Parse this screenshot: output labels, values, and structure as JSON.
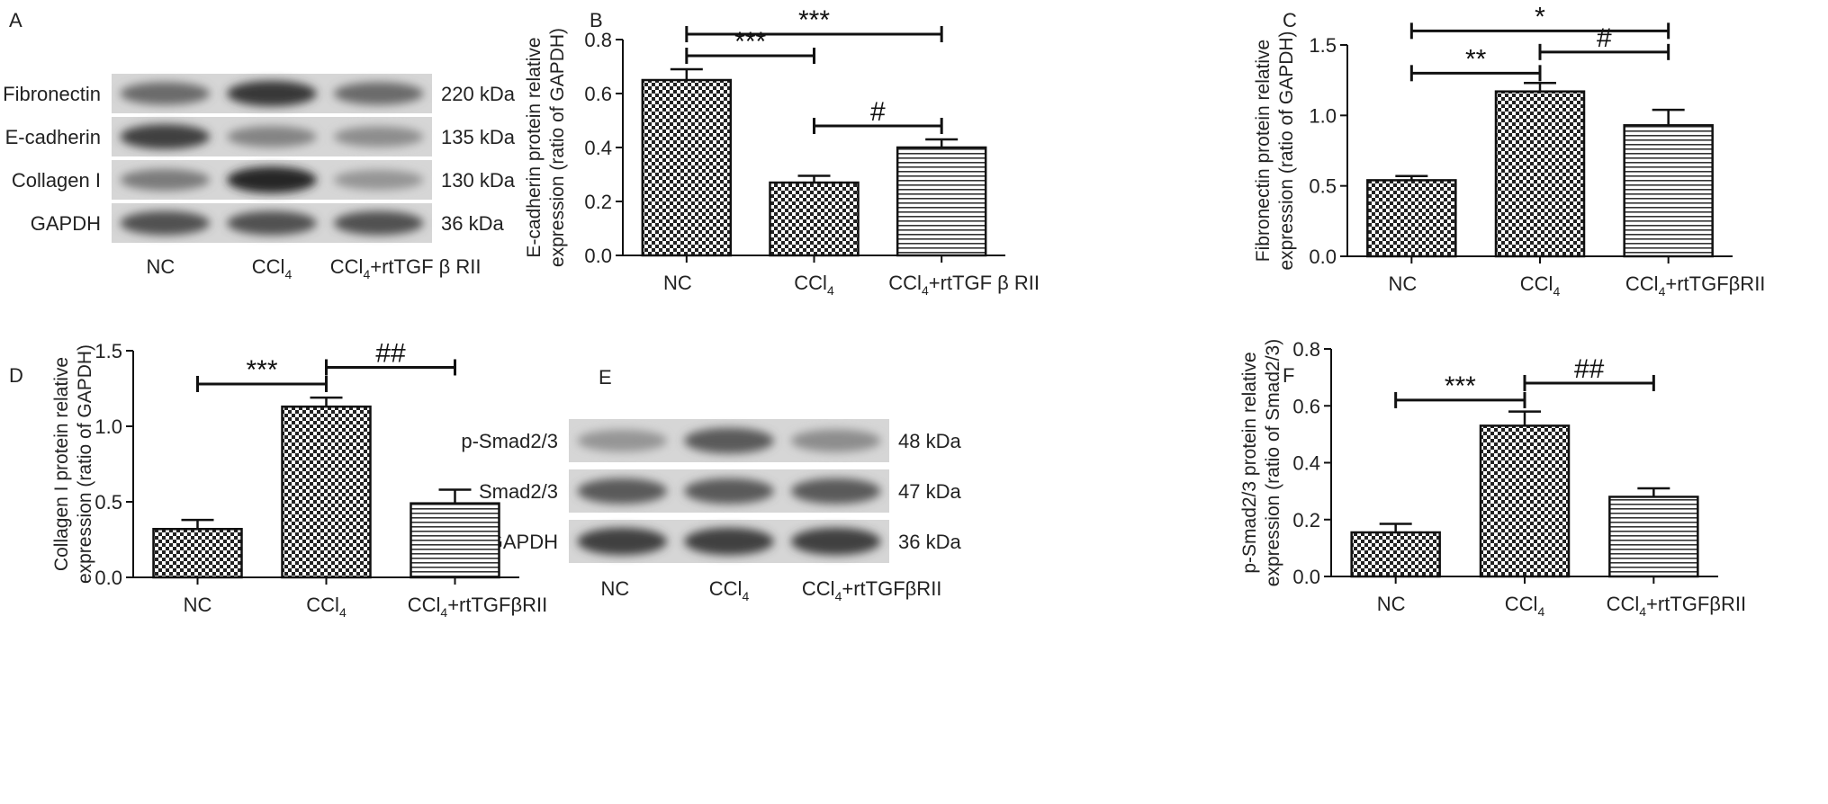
{
  "colors": {
    "ink": "#111111",
    "gel_bg": "#d9d9d9",
    "band": "#3a3a3a",
    "page": "#ffffff"
  },
  "blot_A": {
    "panel_label": "A",
    "rows": [
      {
        "protein": "Fibronectin",
        "size": "220 kDa",
        "intensity": [
          0.55,
          0.85,
          0.55
        ]
      },
      {
        "protein": "E-cadherin",
        "size": "135 kDa",
        "intensity": [
          0.8,
          0.4,
          0.35
        ]
      },
      {
        "protein": "Collagen I",
        "size": "130 kDa",
        "intensity": [
          0.45,
          0.95,
          0.3
        ]
      },
      {
        "protein": "GAPDH",
        "size": "36 kDa",
        "intensity": [
          0.7,
          0.7,
          0.7
        ]
      }
    ],
    "lanes": [
      {
        "main": "NC",
        "sub": "",
        "rest": ""
      },
      {
        "main": "CCl",
        "sub": "4",
        "rest": ""
      },
      {
        "main": "CCl",
        "sub": "4",
        "rest": "+rtTGF β RII"
      }
    ]
  },
  "blot_E": {
    "panel_label": "E",
    "rows": [
      {
        "protein": "p-Smad2/3",
        "size": "48 kDa",
        "intensity": [
          0.3,
          0.65,
          0.35
        ]
      },
      {
        "protein": "Smad2/3",
        "size": "47 kDa",
        "intensity": [
          0.65,
          0.65,
          0.65
        ]
      },
      {
        "protein": "GAPDH",
        "size": "36 kDa",
        "intensity": [
          0.8,
          0.8,
          0.8
        ]
      }
    ],
    "lanes": [
      {
        "main": "NC",
        "sub": "",
        "rest": ""
      },
      {
        "main": "CCl",
        "sub": "4",
        "rest": ""
      },
      {
        "main": "CCl",
        "sub": "4",
        "rest": "+rtTGFβRII"
      }
    ]
  },
  "chart_data": [
    {
      "panel_label": "B",
      "type": "bar",
      "categories": [
        {
          "main": "NC",
          "sub": "",
          "rest": ""
        },
        {
          "main": "CCl",
          "sub": "4",
          "rest": ""
        },
        {
          "main": "CCl",
          "sub": "4",
          "rest": "+rtTGF β RII"
        }
      ],
      "values": [
        0.65,
        0.27,
        0.4
      ],
      "errors": [
        0.04,
        0.025,
        0.03
      ],
      "ylabel": [
        "E-cadherin protein relative",
        "expression (ratio of GAPDH)"
      ],
      "ylim": [
        0,
        0.8
      ],
      "yticks": [
        "0.0",
        "0.2",
        "0.4",
        "0.6",
        "0.8"
      ],
      "patterns": [
        "check",
        "check",
        "hstripe"
      ],
      "significance": [
        {
          "from": 0,
          "to": 1,
          "label": "***",
          "y": 0.74
        },
        {
          "from": 0,
          "to": 2,
          "label": "***",
          "y": 0.82
        },
        {
          "from": 1,
          "to": 2,
          "label": "#",
          "y": 0.48
        }
      ]
    },
    {
      "panel_label": "C",
      "type": "bar",
      "categories": [
        {
          "main": "NC",
          "sub": "",
          "rest": ""
        },
        {
          "main": "CCl",
          "sub": "4",
          "rest": ""
        },
        {
          "main": "CCl",
          "sub": "4",
          "rest": "+rtTGFβRII"
        }
      ],
      "values": [
        0.54,
        1.17,
        0.93
      ],
      "errors": [
        0.03,
        0.06,
        0.11
      ],
      "ylabel": [
        "Fibronectin protein relative",
        "expression (ratio of GAPDH)"
      ],
      "ylim": [
        0,
        1.5
      ],
      "yticks": [
        "0.0",
        "0.5",
        "1.0",
        "1.5"
      ],
      "patterns": [
        "check",
        "check",
        "hstripe"
      ],
      "significance": [
        {
          "from": 0,
          "to": 1,
          "label": "**",
          "y": 1.3
        },
        {
          "from": 0,
          "to": 2,
          "label": "*",
          "y": 1.6
        },
        {
          "from": 1,
          "to": 2,
          "label": "#",
          "y": 1.45
        }
      ]
    },
    {
      "panel_label": "D",
      "type": "bar",
      "categories": [
        {
          "main": "NC",
          "sub": "",
          "rest": ""
        },
        {
          "main": "CCl",
          "sub": "4",
          "rest": ""
        },
        {
          "main": "CCl",
          "sub": "4",
          "rest": "+rtTGFβRII"
        }
      ],
      "values": [
        0.32,
        1.13,
        0.49
      ],
      "errors": [
        0.06,
        0.06,
        0.09
      ],
      "ylabel": [
        "Collagen I protein relative",
        "expression (ratio of GAPDH)"
      ],
      "ylim": [
        0,
        1.5
      ],
      "yticks": [
        "0.0",
        "0.5",
        "1.0",
        "1.5"
      ],
      "patterns": [
        "check",
        "check",
        "hstripe"
      ],
      "significance": [
        {
          "from": 0,
          "to": 1,
          "label": "***",
          "y": 1.28
        },
        {
          "from": 1,
          "to": 2,
          "label": "##",
          "y": 1.39
        }
      ]
    },
    {
      "panel_label": "F",
      "type": "bar",
      "categories": [
        {
          "main": "NC",
          "sub": "",
          "rest": ""
        },
        {
          "main": "CCl",
          "sub": "4",
          "rest": ""
        },
        {
          "main": "CCl",
          "sub": "4",
          "rest": "+rtTGFβRII"
        }
      ],
      "values": [
        0.155,
        0.53,
        0.28
      ],
      "errors": [
        0.03,
        0.05,
        0.03
      ],
      "ylabel": [
        "p-Smad2/3 protein relative",
        "expression (ratio of Smad2/3)"
      ],
      "ylim": [
        0,
        0.8
      ],
      "yticks": [
        "0.0",
        "0.2",
        "0.4",
        "0.6",
        "0.8"
      ],
      "patterns": [
        "check",
        "check",
        "hstripe"
      ],
      "significance": [
        {
          "from": 0,
          "to": 1,
          "label": "***",
          "y": 0.62
        },
        {
          "from": 1,
          "to": 2,
          "label": "##",
          "y": 0.68
        }
      ]
    }
  ]
}
